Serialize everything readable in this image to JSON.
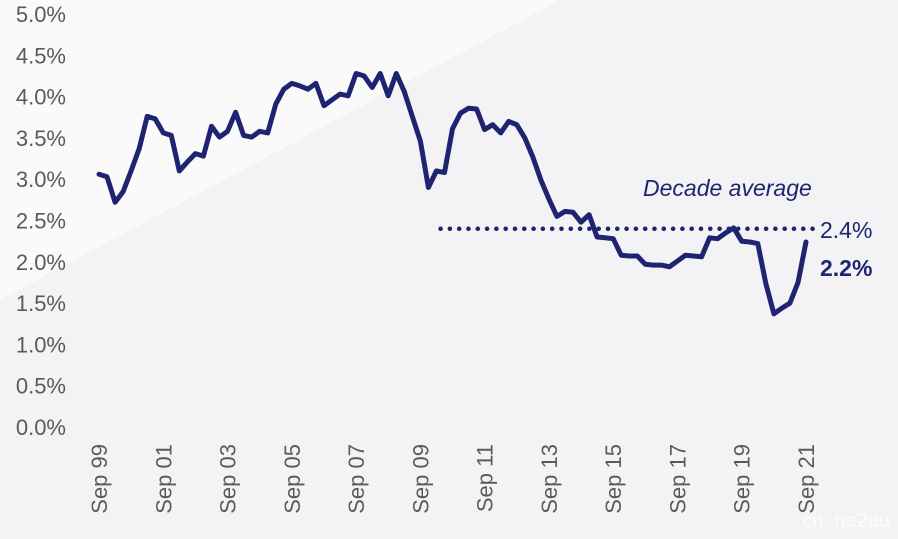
{
  "chart_data": {
    "type": "line",
    "title": "",
    "xlabel": "",
    "ylabel": "",
    "ylim": [
      0,
      5.0
    ],
    "yticks": [
      "0.0%",
      "0.5%",
      "1.0%",
      "1.5%",
      "2.0%",
      "2.5%",
      "3.0%",
      "3.5%",
      "4.0%",
      "4.5%",
      "5.0%"
    ],
    "xticks": [
      "Sep 99",
      "Sep 01",
      "Sep 03",
      "Sep 05",
      "Sep 07",
      "Sep 09",
      "Sep 11",
      "Sep 13",
      "Sep 15",
      "Sep 17",
      "Sep 19",
      "Sep 21"
    ],
    "series": [
      {
        "color": "#1f2470",
        "x": [
          1999.75,
          2000.0,
          2000.25,
          2000.5,
          2000.75,
          2001.0,
          2001.25,
          2001.5,
          2001.75,
          2002.0,
          2002.25,
          2002.5,
          2002.75,
          2003.0,
          2003.25,
          2003.5,
          2003.75,
          2004.0,
          2004.25,
          2004.5,
          2004.75,
          2005.0,
          2005.25,
          2005.5,
          2005.75,
          2006.0,
          2006.25,
          2006.5,
          2006.75,
          2007.0,
          2007.25,
          2007.5,
          2007.75,
          2008.0,
          2008.25,
          2008.5,
          2008.75,
          2009.0,
          2009.25,
          2009.5,
          2009.75,
          2010.0,
          2010.25,
          2010.5,
          2010.75,
          2011.0,
          2011.25,
          2011.5,
          2011.75,
          2012.0,
          2012.25,
          2012.5,
          2012.75,
          2013.0,
          2013.25,
          2013.5,
          2013.75,
          2014.0,
          2014.25,
          2014.5,
          2014.75,
          2015.0,
          2015.25,
          2015.5,
          2015.75,
          2016.0,
          2016.25,
          2016.5,
          2016.75,
          2017.0,
          2017.25,
          2017.5,
          2017.75,
          2018.0,
          2018.25,
          2018.5,
          2018.75,
          2019.0,
          2019.25,
          2019.5,
          2019.75,
          2020.0,
          2020.25,
          2020.5,
          2020.75,
          2021.0,
          2021.25,
          2021.5,
          2021.75
        ],
        "y": [
          3.06,
          3.03,
          2.72,
          2.85,
          3.1,
          3.37,
          3.76,
          3.73,
          3.56,
          3.53,
          3.1,
          3.21,
          3.31,
          3.28,
          3.64,
          3.51,
          3.58,
          3.81,
          3.53,
          3.51,
          3.58,
          3.56,
          3.91,
          4.09,
          4.16,
          4.13,
          4.09,
          4.16,
          3.89,
          3.96,
          4.03,
          4.01,
          4.28,
          4.25,
          4.11,
          4.28,
          4.01,
          4.28,
          4.06,
          3.76,
          3.46,
          2.9,
          3.1,
          3.08,
          3.61,
          3.8,
          3.86,
          3.85,
          3.6,
          3.66,
          3.56,
          3.7,
          3.66,
          3.5,
          3.27,
          2.99,
          2.76,
          2.55,
          2.61,
          2.6,
          2.48,
          2.57,
          2.3,
          2.29,
          2.28,
          2.08,
          2.07,
          2.07,
          1.97,
          1.96,
          1.96,
          1.94,
          2.01,
          2.08,
          2.07,
          2.06,
          2.29,
          2.28,
          2.35,
          2.41,
          2.25,
          2.24,
          2.22,
          1.74,
          1.37,
          1.44,
          1.5,
          1.75,
          2.24
        ]
      }
    ],
    "reference_line": {
      "label": "Decade average",
      "value": 2.4,
      "value_label": "2.4%",
      "x_start": 2011.0,
      "x_end": 2021.75,
      "style": "dotted"
    },
    "last_value_label": "2.2%",
    "grid": false,
    "legend": "none"
  },
  "watermark": "cn: na2au"
}
